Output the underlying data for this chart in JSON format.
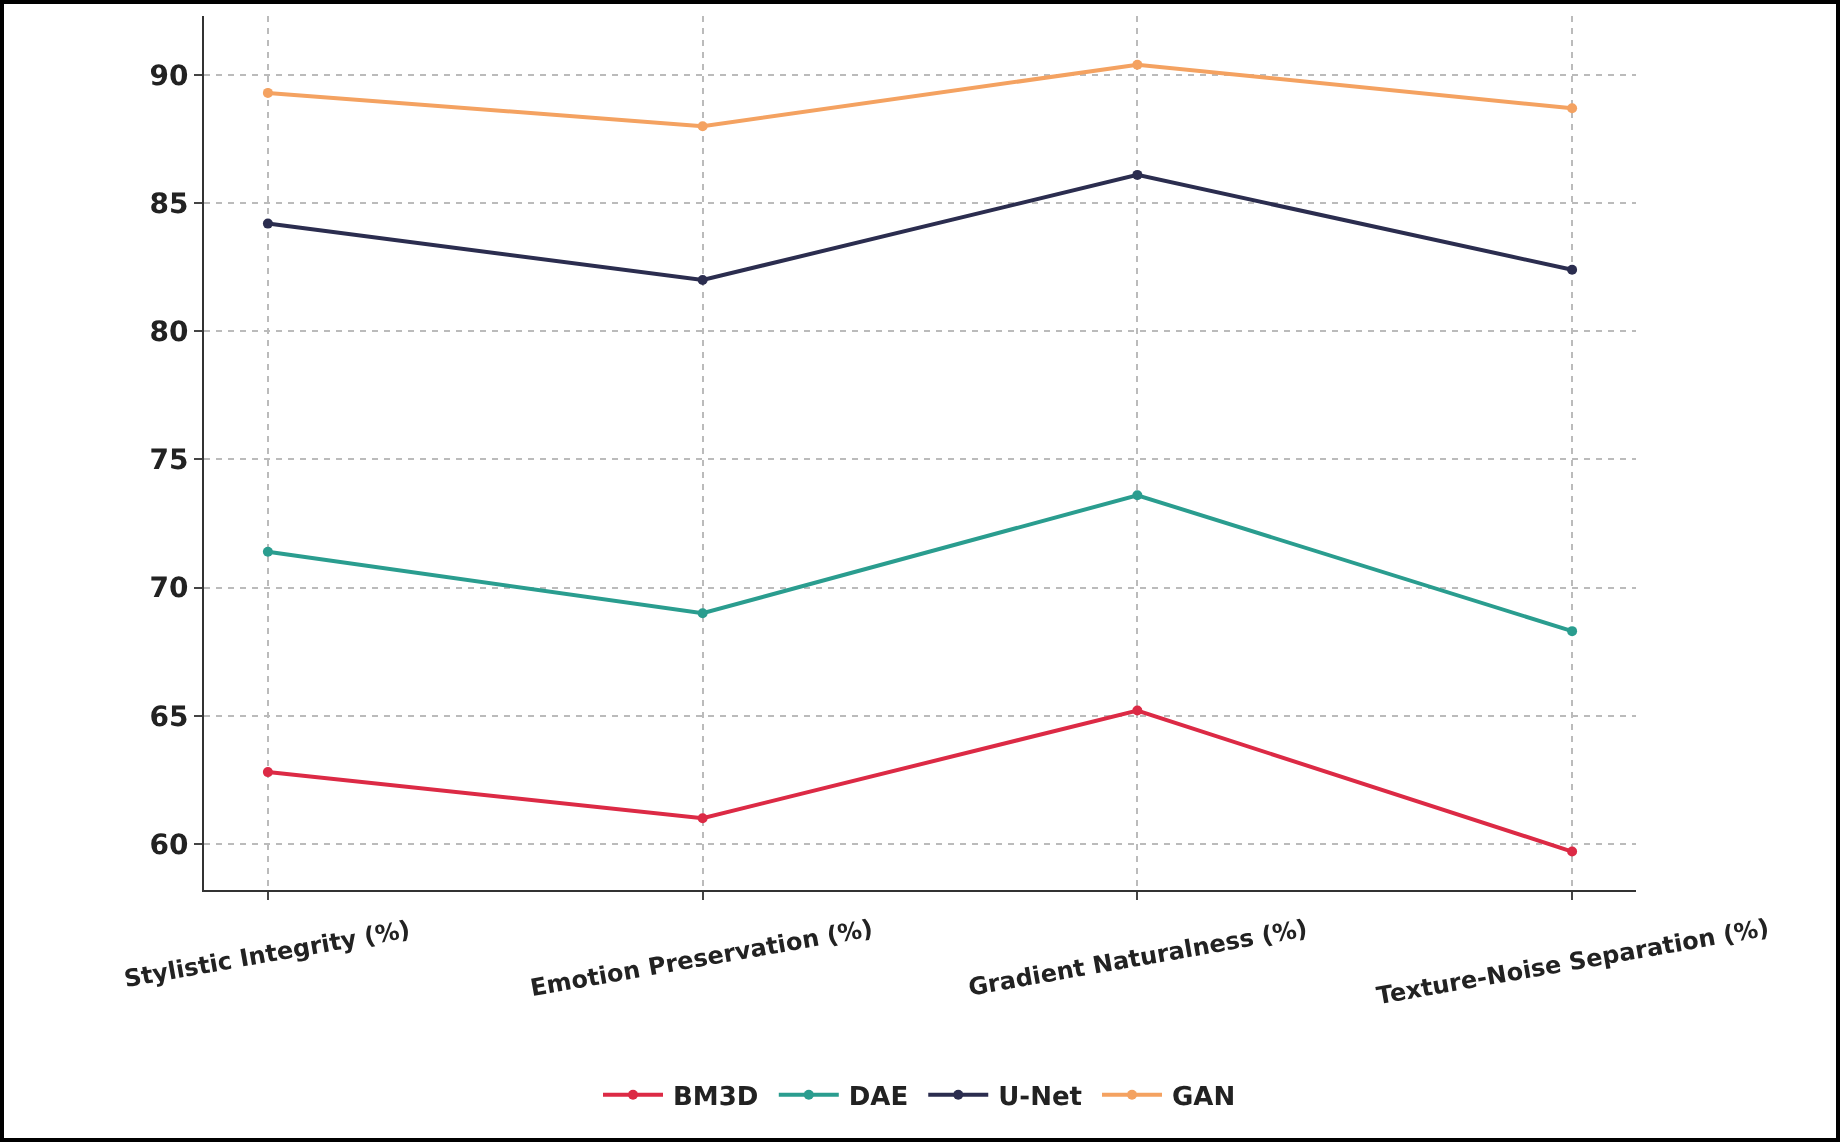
{
  "chart_data": {
    "type": "line",
    "categories": [
      "Stylistic Integrity (%)",
      "Emotion Preservation (%)",
      "Gradient Naturalness (%)",
      "Texture-Noise Separation (%)"
    ],
    "series": [
      {
        "name": "BM3D",
        "color": "#dc2a45",
        "values": [
          62.8,
          61.0,
          65.2,
          59.7
        ]
      },
      {
        "name": "DAE",
        "color": "#2a9d8f",
        "values": [
          71.4,
          69.0,
          73.6,
          68.3
        ]
      },
      {
        "name": "U-Net",
        "color": "#2b2d4f",
        "values": [
          84.2,
          82.0,
          86.1,
          82.4
        ]
      },
      {
        "name": "GAN",
        "color": "#f4a261",
        "values": [
          89.3,
          88.0,
          90.4,
          88.7
        ]
      }
    ],
    "ylim": [
      58.2,
      92.3
    ],
    "yticks": [
      60,
      65,
      70,
      75,
      80,
      85,
      90
    ],
    "grid": true,
    "legend": "bottom",
    "marker": "circle",
    "line_style": "solid"
  }
}
